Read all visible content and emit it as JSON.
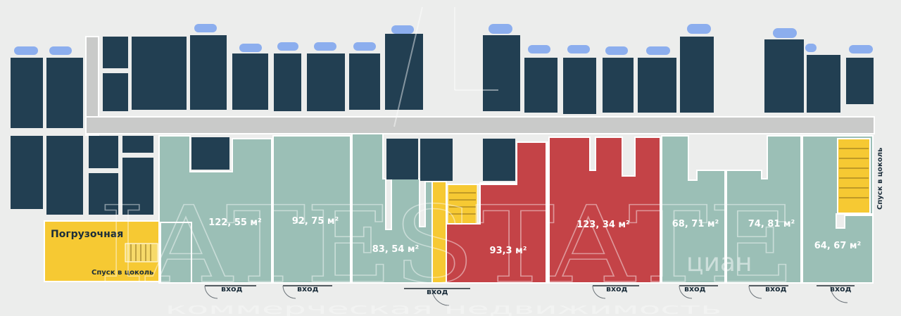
{
  "plan": {
    "colors": {
      "background": "#ecedec",
      "building": "#223f52",
      "corridor": "#c9cac9",
      "unit_available": "#9bbfb6",
      "unit_highlight": "#c44347",
      "service": "#f6c933",
      "marker": "#8caeee"
    },
    "units": [
      {
        "area": "122, 55 м²"
      },
      {
        "area": "92, 75 м²"
      },
      {
        "area": "83, 54 м²"
      },
      {
        "area": "93,3 м²"
      },
      {
        "area": "123, 34 м²"
      },
      {
        "area": "68, 71 м²"
      },
      {
        "area": "74, 81 м²"
      },
      {
        "area": "64, 67 м²"
      }
    ],
    "entrance_label": "вход",
    "loading_label": "Погрузочная",
    "stairs_left_label": "Спуск в цоколь",
    "stairs_right_label": "Спуск в цоколь"
  },
  "watermark": {
    "main": "IATESTATE",
    "sub": "коммерческая недвижимость",
    "badge": "циан"
  }
}
